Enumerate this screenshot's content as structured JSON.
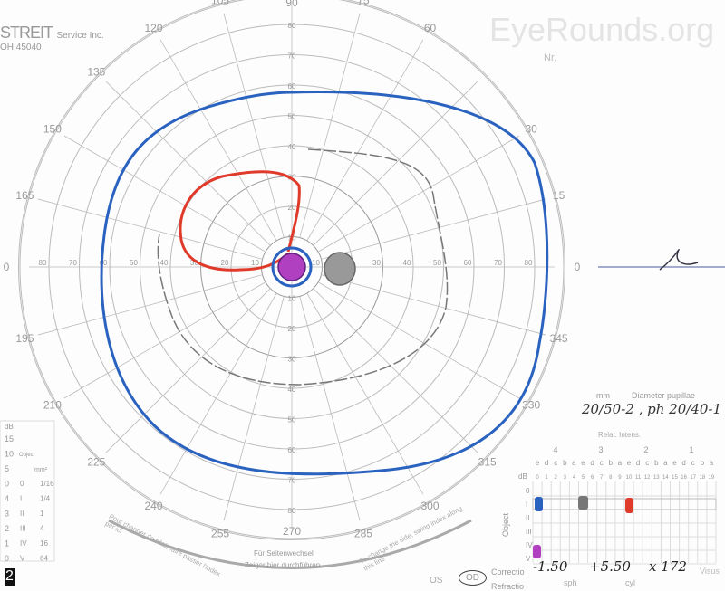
{
  "watermark": "EyeRounds.org",
  "maker": {
    "brand": "STREIT",
    "line1": "Service Inc.",
    "line2": "OH 45040",
    "corner": "Nr."
  },
  "meridians": [
    "0",
    "15",
    "30",
    "45",
    "60",
    "75",
    "90",
    "105",
    "120",
    "135",
    "150",
    "165",
    "180",
    "195",
    "210",
    "225",
    "240",
    "255",
    "270",
    "285",
    "300",
    "315",
    "330",
    "345"
  ],
  "meridian_labels": {
    "0": "0",
    "15": "15",
    "30": "30",
    "60": "60",
    "75": "75",
    "90": "90",
    "105": "105",
    "120": "120",
    "135": "135",
    "150": "150",
    "165": "165",
    "180": "0",
    "195": "195",
    "210": "210",
    "225": "225",
    "240": "240",
    "255": "255",
    "270": "270",
    "285": "285",
    "300": "300",
    "315": "315",
    "330": "330",
    "345": "345"
  },
  "eccentricities": [
    "10",
    "20",
    "30",
    "40",
    "50",
    "60",
    "70",
    "80",
    "90"
  ],
  "side_swap": {
    "french": "Pour changer de côté, faire passer l'index par ici",
    "german1": "Für Seitenwechsel",
    "german2": "Zeiger hier durchführen",
    "english": "To change the side, swing index along this line"
  },
  "eye": {
    "os": "OS",
    "od": "OD",
    "selected": "OD"
  },
  "pupil": {
    "mm_label": "mm",
    "label": "Diameter pupillae"
  },
  "visual_acuity_note": "20/50-2 , ph 20/40-1",
  "intensity": {
    "label": "Relat. Intens.",
    "groups": [
      "4",
      "3",
      "2",
      "1"
    ],
    "letters": [
      "e",
      "d",
      "c",
      "b",
      "a",
      "e",
      "d",
      "c",
      "b",
      "a",
      "e",
      "d",
      "c",
      "b",
      "a",
      "e",
      "d",
      "c",
      "b",
      "a"
    ],
    "db_label": "dB",
    "db": [
      "0",
      "1",
      "2",
      "3",
      "4",
      "5",
      "6",
      "7",
      "8",
      "9",
      "10",
      "11",
      "12",
      "13",
      "14",
      "15",
      "16",
      "17",
      "18",
      "19"
    ],
    "object_label": "Object",
    "objects": [
      "0",
      "I",
      "II",
      "III",
      "IV",
      "V"
    ]
  },
  "correction": {
    "label": "Correctio",
    "refraction_label": "Refractio",
    "sph": "-1.50",
    "cyl": "+5.50",
    "axis": "x 172",
    "sph_label": "sph",
    "cyl_label": "cyl",
    "visus_label": "Visus"
  },
  "legend_table": {
    "db_label": "dB",
    "db": [
      "15",
      "10",
      "5",
      "0",
      "4",
      "3",
      "2",
      "1",
      "0"
    ],
    "object_label": "Object",
    "mm_label": "mm²",
    "objects": [
      "0",
      "I",
      "II",
      "III",
      "IV",
      "V"
    ],
    "mm": [
      "1/16",
      "1/4",
      "1",
      "4",
      "16",
      "64"
    ]
  },
  "page_number": "2",
  "isopter_colors": {
    "V4e": "#2a62c0",
    "III4e": "#777777",
    "I4e": "#e03a2a",
    "V4e_center": "#b040c0"
  },
  "signature": "JL"
}
